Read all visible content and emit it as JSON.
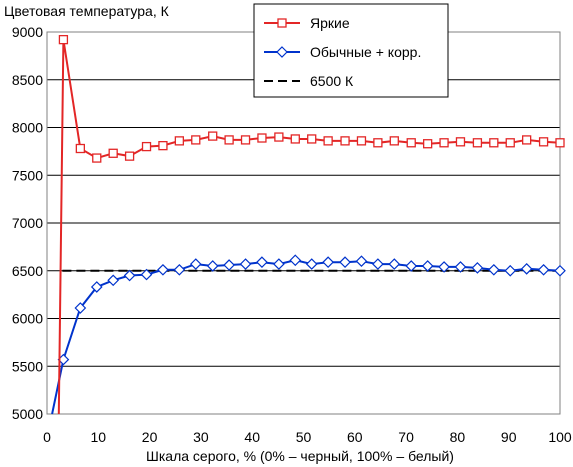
{
  "chart_data": {
    "type": "line",
    "title": "Цветовая температура, К",
    "xlabel": "Шкала серого, % (0% – черный, 100% – белый)",
    "ylabel": "",
    "xlim": [
      0,
      100
    ],
    "ylim": [
      5000,
      9000
    ],
    "xticks": [
      0,
      10,
      20,
      30,
      40,
      50,
      60,
      70,
      80,
      90,
      100
    ],
    "yticks": [
      5000,
      5500,
      6000,
      6500,
      7000,
      7500,
      8000,
      8500,
      9000
    ],
    "grid": "horizontal",
    "legend_position": "top-right",
    "series": [
      {
        "name": "Яркие",
        "color": "#e32626",
        "marker": "square",
        "x": [
          2.3,
          3.2,
          6.5,
          9.7,
          12.9,
          16.1,
          19.4,
          22.6,
          25.8,
          29.0,
          32.3,
          35.5,
          38.7,
          41.9,
          45.2,
          48.4,
          51.6,
          54.8,
          58.1,
          61.3,
          64.5,
          67.7,
          71.0,
          74.2,
          77.4,
          80.6,
          83.9,
          87.1,
          90.3,
          93.5,
          96.8,
          100.0
        ],
        "y": [
          5000,
          8920,
          7780,
          7680,
          7730,
          7700,
          7800,
          7810,
          7860,
          7870,
          7910,
          7870,
          7870,
          7890,
          7900,
          7880,
          7880,
          7860,
          7860,
          7860,
          7840,
          7860,
          7840,
          7830,
          7840,
          7850,
          7840,
          7840,
          7840,
          7870,
          7850,
          7840
        ]
      },
      {
        "name": "Обычные + корр.",
        "color": "#0033cc",
        "marker": "diamond",
        "x": [
          1.0,
          3.2,
          6.5,
          9.7,
          12.9,
          16.1,
          19.4,
          22.6,
          25.8,
          29.0,
          32.3,
          35.5,
          38.7,
          41.9,
          45.2,
          48.4,
          51.6,
          54.8,
          58.1,
          61.3,
          64.5,
          67.7,
          71.0,
          74.2,
          77.4,
          80.6,
          83.9,
          87.1,
          90.3,
          93.5,
          96.8,
          100.0
        ],
        "y": [
          5000,
          5570,
          6110,
          6330,
          6400,
          6450,
          6460,
          6510,
          6510,
          6570,
          6550,
          6560,
          6570,
          6590,
          6570,
          6610,
          6570,
          6590,
          6590,
          6600,
          6570,
          6570,
          6550,
          6550,
          6540,
          6540,
          6530,
          6510,
          6500,
          6520,
          6510,
          6500
        ]
      },
      {
        "name": "6500 К",
        "color": "#000000",
        "dash": true,
        "x": [
          3,
          100
        ],
        "y": [
          6500,
          6500
        ]
      }
    ]
  }
}
